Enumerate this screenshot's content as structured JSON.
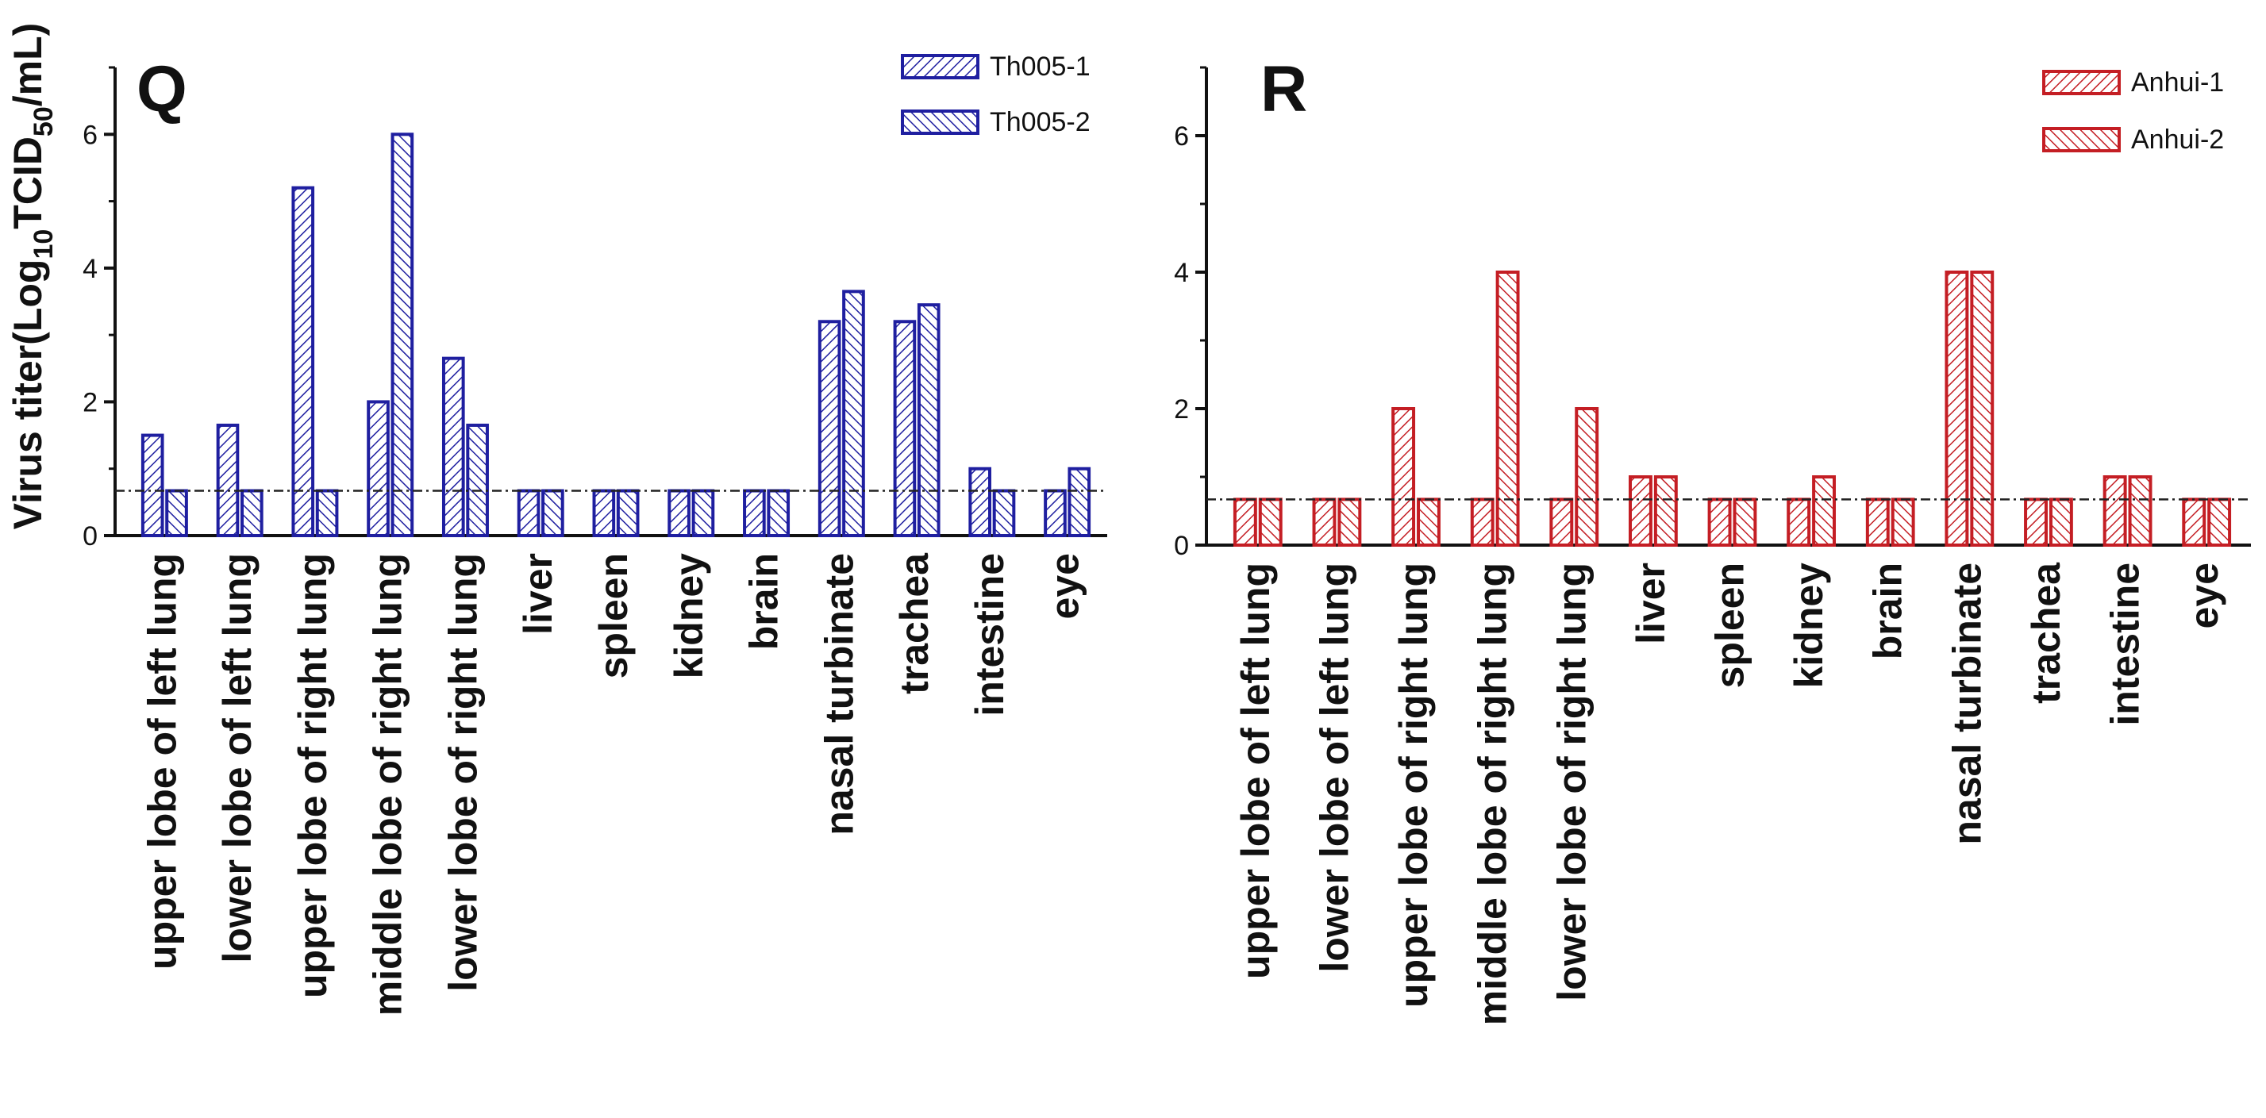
{
  "chart_data": [
    {
      "type": "bar",
      "panel_label": "Q",
      "title": "",
      "ylabel_main": "Virus titer(Log",
      "ylabel_sub": "10",
      "ylabel_mid": "TCID",
      "ylabel_sub2": "50",
      "ylabel_end": "/mL)",
      "xlabel": "",
      "ylim": [
        0,
        7
      ],
      "yticks": [
        "0",
        "2",
        "4",
        "6"
      ],
      "threshold": 0.67,
      "color": "#1f1fa0",
      "categories": [
        "upper lobe of left lung",
        "lower lobe of left lung",
        "upper lobe of right lung",
        "middle lobe of right lung",
        "lower lobe of right lung",
        "liver",
        "spleen",
        "kidney",
        "brain",
        "nasal turbinate",
        "trachea",
        "intestine",
        "eye"
      ],
      "series": [
        {
          "name": "Th005-1",
          "values": [
            1.5,
            1.65,
            5.2,
            2.0,
            2.65,
            0.67,
            0.67,
            0.67,
            0.67,
            3.2,
            3.2,
            1.0,
            0.67
          ]
        },
        {
          "name": "Th005-2",
          "values": [
            0.67,
            0.67,
            0.67,
            6.0,
            1.65,
            0.67,
            0.67,
            0.67,
            0.67,
            3.65,
            3.45,
            0.67,
            1.0
          ]
        }
      ],
      "legend_position": "top-right"
    },
    {
      "type": "bar",
      "panel_label": "R",
      "title": "",
      "xlabel": "",
      "ylabel": "",
      "ylim": [
        0,
        7
      ],
      "yticks": [
        "0",
        "2",
        "4",
        "6"
      ],
      "threshold": 0.67,
      "color": "#c41e24",
      "categories": [
        "upper lobe of left lung",
        "lower lobe of left lung",
        "upper lobe of right lung",
        "middle lobe of right lung",
        "lower lobe of right lung",
        "liver",
        "spleen",
        "kidney",
        "brain",
        "nasal turbinate",
        "trachea",
        "intestine",
        "eye"
      ],
      "series": [
        {
          "name": "Anhui-1",
          "values": [
            0.67,
            0.67,
            2.0,
            0.67,
            0.67,
            1.0,
            0.67,
            0.67,
            0.67,
            4.0,
            0.67,
            1.0,
            0.67
          ]
        },
        {
          "name": "Anhui-2",
          "values": [
            0.67,
            0.67,
            0.67,
            4.0,
            2.0,
            1.0,
            0.67,
            1.0,
            0.67,
            4.0,
            0.67,
            1.0,
            0.67
          ]
        }
      ],
      "legend_position": "top-right"
    }
  ]
}
